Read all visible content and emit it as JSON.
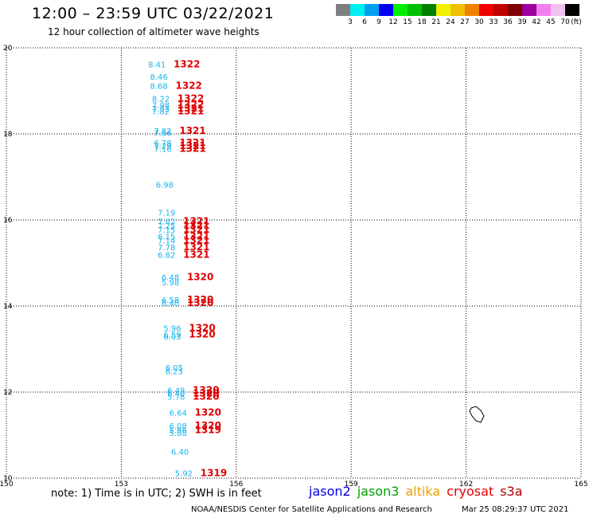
{
  "header": {
    "title": "12:00 – 23:59 UTC 03/22/2021",
    "subtitle": "12 hour collection of altimeter wave heights"
  },
  "scale": {
    "labels": [
      "3",
      "6",
      "9",
      "12",
      "15",
      "18",
      "21",
      "24",
      "27",
      "30",
      "33",
      "36",
      "39",
      "42",
      "45",
      "70"
    ],
    "unit": "(ft)",
    "colors": [
      "#7f7f7f",
      "#00f0f0",
      "#00a0f0",
      "#0000f0",
      "#00f000",
      "#00c000",
      "#008000",
      "#f0f000",
      "#f0c000",
      "#f08000",
      "#f00000",
      "#c00000",
      "#800000",
      "#a000a0",
      "#f080f0",
      "#f0c0f0",
      "#000000"
    ]
  },
  "chart_data": {
    "type": "scatter",
    "xlim": [
      150,
      165
    ],
    "ylim": [
      10,
      20
    ],
    "x_ticks": [
      "150",
      "153",
      "156",
      "159",
      "162",
      "165"
    ],
    "y_ticks": [
      "10",
      "12",
      "14",
      "16",
      "18",
      "20"
    ],
    "grid": true,
    "points": [
      {
        "x": 153.7,
        "y": 19.55,
        "swh": "8.41",
        "cycle": "1322"
      },
      {
        "x": 153.75,
        "y": 19.26,
        "swh": "8.46",
        "cycle": ""
      },
      {
        "x": 153.75,
        "y": 19.05,
        "swh": "8.68",
        "cycle": "1322"
      },
      {
        "x": 153.8,
        "y": 18.75,
        "swh": "8.22",
        "cycle": "1322"
      },
      {
        "x": 153.8,
        "y": 18.6,
        "swh": "7.98",
        "cycle": "1322"
      },
      {
        "x": 153.8,
        "y": 18.52,
        "swh": "7.93",
        "cycle": "1321"
      },
      {
        "x": 153.8,
        "y": 18.45,
        "swh": "7.82",
        "cycle": "1321"
      },
      {
        "x": 153.85,
        "y": 18.0,
        "swh": "7.82",
        "cycle": "1321"
      },
      {
        "x": 153.85,
        "y": 17.95,
        "swh": "7.56",
        "cycle": ""
      },
      {
        "x": 153.85,
        "y": 17.72,
        "swh": "6.78",
        "cycle": "1321"
      },
      {
        "x": 153.85,
        "y": 17.65,
        "swh": "7.29",
        "cycle": "1321"
      },
      {
        "x": 153.85,
        "y": 17.58,
        "swh": "7.16",
        "cycle": "1321"
      },
      {
        "x": 153.9,
        "y": 16.75,
        "swh": "6.98",
        "cycle": ""
      },
      {
        "x": 153.95,
        "y": 16.1,
        "swh": "7.19",
        "cycle": ""
      },
      {
        "x": 153.95,
        "y": 15.9,
        "swh": "7.62",
        "cycle": "1321"
      },
      {
        "x": 153.95,
        "y": 15.8,
        "swh": "7.25",
        "cycle": "1321"
      },
      {
        "x": 153.95,
        "y": 15.7,
        "swh": "7.15",
        "cycle": "1321"
      },
      {
        "x": 153.95,
        "y": 15.55,
        "swh": "6.15",
        "cycle": "1321"
      },
      {
        "x": 153.95,
        "y": 15.45,
        "swh": "7.14",
        "cycle": "1321"
      },
      {
        "x": 153.95,
        "y": 15.3,
        "swh": "7.78",
        "cycle": "1321"
      },
      {
        "x": 153.95,
        "y": 15.12,
        "swh": "6.82",
        "cycle": "1321"
      },
      {
        "x": 154.05,
        "y": 14.6,
        "swh": "6.48",
        "cycle": "1320"
      },
      {
        "x": 154.05,
        "y": 14.48,
        "swh": "5.98",
        "cycle": ""
      },
      {
        "x": 154.05,
        "y": 14.07,
        "swh": "6.58",
        "cycle": "1320"
      },
      {
        "x": 154.05,
        "y": 14.0,
        "swh": "6.40",
        "cycle": "1320"
      },
      {
        "x": 154.1,
        "y": 13.42,
        "swh": "5.96",
        "cycle": "1320"
      },
      {
        "x": 154.1,
        "y": 13.27,
        "swh": "6.59",
        "cycle": "1320"
      },
      {
        "x": 154.1,
        "y": 13.22,
        "swh": "6.03",
        "cycle": ""
      },
      {
        "x": 154.15,
        "y": 12.5,
        "swh": "6.05",
        "cycle": ""
      },
      {
        "x": 154.15,
        "y": 12.42,
        "swh": "6.23",
        "cycle": ""
      },
      {
        "x": 154.2,
        "y": 11.97,
        "swh": "6.49",
        "cycle": "1320"
      },
      {
        "x": 154.2,
        "y": 11.9,
        "swh": "6.40",
        "cycle": "1320"
      },
      {
        "x": 154.2,
        "y": 11.82,
        "swh": "5.78",
        "cycle": "1320"
      },
      {
        "x": 154.25,
        "y": 11.45,
        "swh": "6.64",
        "cycle": "1320"
      },
      {
        "x": 154.25,
        "y": 11.15,
        "swh": "6.08",
        "cycle": "1320"
      },
      {
        "x": 154.25,
        "y": 11.05,
        "swh": "5.86",
        "cycle": "1319"
      },
      {
        "x": 154.25,
        "y": 10.98,
        "swh": "5.88",
        "cycle": ""
      },
      {
        "x": 154.3,
        "y": 10.55,
        "swh": "6.40",
        "cycle": ""
      },
      {
        "x": 154.4,
        "y": 10.05,
        "swh": "5.92",
        "cycle": "1319"
      }
    ]
  },
  "footer": {
    "note": "note:  1) Time is in UTC;  2) SWH is in feet",
    "legend": [
      {
        "name": "jason2",
        "color": "#0000e0"
      },
      {
        "name": "jason3",
        "color": "#00a000"
      },
      {
        "name": "altika",
        "color": "#f0a000"
      },
      {
        "name": "cryosat",
        "color": "#e00000"
      },
      {
        "name": "s3a",
        "color": "#b00000"
      }
    ],
    "credit": "NOAA/NESDIS Center for Satellite Applications and Research",
    "timestamp": "Mar 25 08:29:37 UTC 2021"
  }
}
